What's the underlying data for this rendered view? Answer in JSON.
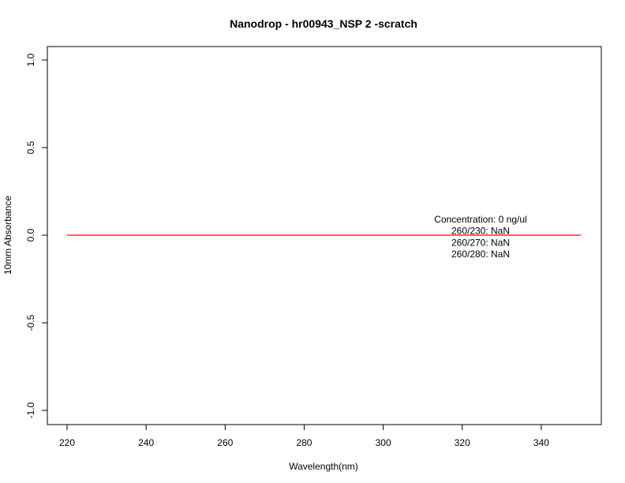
{
  "chart_data": {
    "type": "line",
    "title": "Nanodrop - hr00943_NSP 2 -scratch",
    "xlabel": "Wavelength(nm)",
    "ylabel": "10mm Absorbance",
    "xlim": [
      220,
      350
    ],
    "ylim": [
      -1.0,
      1.0
    ],
    "x_ticks": [
      220,
      240,
      260,
      280,
      300,
      320,
      340
    ],
    "x_tick_labels": [
      "220",
      "240",
      "260",
      "280",
      "300",
      "320",
      "340"
    ],
    "y_ticks": [
      -1.0,
      -0.5,
      0.0,
      0.5,
      1.0
    ],
    "y_tick_labels": [
      "-1.0",
      "-0.5",
      "0.0",
      "0.5",
      "1.0"
    ],
    "grid": false,
    "series": [
      {
        "color": "#ff0000",
        "x": [
          220,
          350
        ],
        "y": [
          0,
          0
        ]
      }
    ],
    "annotations": [
      "Concentration: 0 ng/ul",
      "260/230: NaN",
      "260/270: NaN",
      "260/280: NaN"
    ]
  }
}
